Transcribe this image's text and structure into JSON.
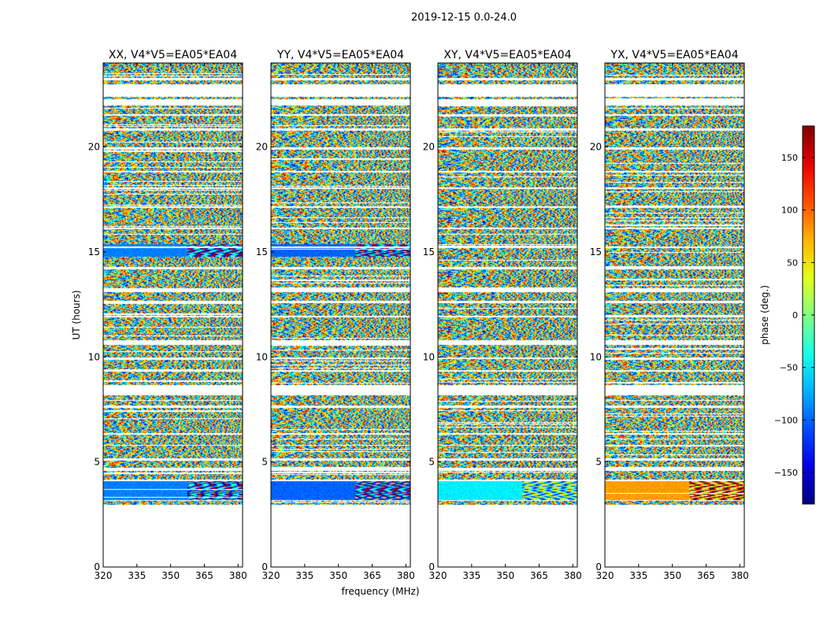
{
  "figure_title": "2019-12-15 0.0-24.0",
  "chart_data": {
    "type": "heatmap",
    "title": "2019-12-15 0.0-24.0",
    "xlabel": "frequency (MHz)",
    "ylabel": "UT (hours)",
    "xlim": [
      320,
      382
    ],
    "ylim": [
      0,
      24
    ],
    "xticks": [
      320,
      335,
      350,
      365,
      380
    ],
    "yticks": [
      0,
      5,
      10,
      15,
      20
    ],
    "panels": [
      {
        "title": "XX, V4*V5=EA05*EA04",
        "bias_phase": -90,
        "alt_phase": -110,
        "note": "strong cyan/blue band near 3.5 h and 15 h"
      },
      {
        "title": "YY, V4*V5=EA05*EA04",
        "bias_phase": -100,
        "alt_phase": -120,
        "note": "strong cyan/blue band near 3.5 h and 15 h"
      },
      {
        "title": "XY, V4*V5=EA05*EA04",
        "bias_phase": -50,
        "alt_phase": -30,
        "note": "cyan-green band near 3.5 h"
      },
      {
        "title": "YX, V4*V5=EA05*EA04",
        "bias_phase": 80,
        "alt_phase": 100,
        "note": "orange band near 3.5 h"
      }
    ],
    "data_coverage_hours": [
      [
        3.0,
        3.15
      ],
      [
        3.2,
        4.1
      ],
      [
        4.2,
        4.6
      ],
      [
        4.75,
        5.1
      ],
      [
        5.2,
        5.8
      ],
      [
        5.85,
        6.3
      ],
      [
        6.4,
        7.6
      ],
      [
        7.7,
        8.2
      ],
      [
        8.7,
        9.3
      ],
      [
        9.4,
        9.9
      ],
      [
        10.0,
        10.6
      ],
      [
        10.8,
        11.9
      ],
      [
        12.0,
        12.6
      ],
      [
        12.7,
        13.1
      ],
      [
        13.3,
        14.2
      ],
      [
        14.3,
        15.2
      ],
      [
        15.3,
        16.1
      ],
      [
        16.2,
        17.1
      ],
      [
        17.2,
        18.0
      ],
      [
        18.1,
        18.8
      ],
      [
        18.9,
        19.9
      ],
      [
        20.0,
        20.8
      ],
      [
        20.9,
        21.5
      ],
      [
        21.6,
        22.0
      ],
      [
        22.3,
        22.4
      ],
      [
        23.0,
        23.2
      ],
      [
        23.3,
        24.0
      ]
    ],
    "colorbar": {
      "label": "phase (deg.)",
      "range": [
        -180,
        180
      ],
      "ticks": [
        -150,
        -100,
        -50,
        0,
        50,
        100,
        150
      ],
      "tick_labels": [
        "−150",
        "−100",
        "−50",
        "0",
        "50",
        "100",
        "150"
      ],
      "colormap": "jet"
    }
  }
}
